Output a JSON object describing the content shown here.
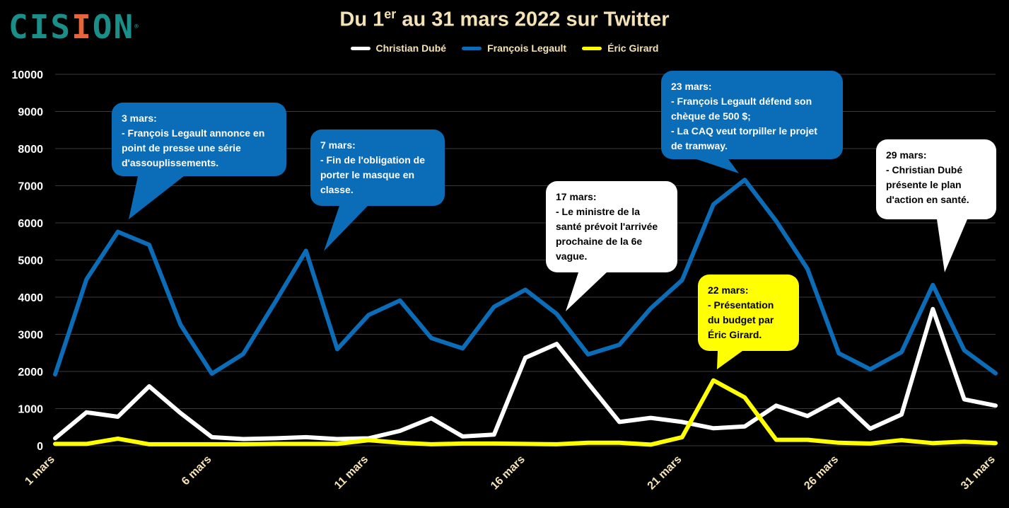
{
  "logo": {
    "text_a": "CIS",
    "text_b": "I",
    "text_c": "ON",
    "mark": "®"
  },
  "title": {
    "prefix": "Du 1",
    "sup": "er",
    "suffix": " au 31 mars 2022 sur Twitter"
  },
  "chart_data": {
    "type": "line",
    "x": [
      1,
      2,
      3,
      4,
      5,
      6,
      7,
      8,
      9,
      10,
      11,
      12,
      13,
      14,
      15,
      16,
      17,
      18,
      19,
      20,
      21,
      22,
      23,
      24,
      25,
      26,
      27,
      28,
      29,
      30,
      31
    ],
    "x_tick_labels": [
      "1 mars",
      "6 mars",
      "11 mars",
      "16 mars",
      "21 mars",
      "26 mars",
      "31 mars"
    ],
    "x_tick_positions": [
      1,
      6,
      11,
      16,
      21,
      26,
      31
    ],
    "ylim": [
      0,
      10000
    ],
    "y_ticks": [
      0,
      1000,
      2000,
      3000,
      4000,
      5000,
      6000,
      7000,
      8000,
      9000,
      10000
    ],
    "grid": true,
    "legend_position": "top",
    "series": [
      {
        "name": "Christian Dubé",
        "color": "#ffffff",
        "values": [
          200,
          900,
          780,
          1600,
          880,
          230,
          180,
          200,
          230,
          180,
          200,
          400,
          740,
          250,
          300,
          2370,
          2740,
          1680,
          640,
          750,
          640,
          470,
          520,
          1080,
          800,
          1250,
          460,
          840,
          3680,
          1250,
          1080
        ]
      },
      {
        "name": "François Legault",
        "color": "#0b6cb8",
        "values": [
          1920,
          4480,
          5760,
          5410,
          3260,
          1940,
          2470,
          3840,
          5250,
          2600,
          3520,
          3910,
          2900,
          2620,
          3740,
          4200,
          3550,
          2460,
          2720,
          3700,
          4460,
          6500,
          7160,
          6050,
          4760,
          2490,
          2060,
          2520,
          4330,
          2570,
          1950
        ]
      },
      {
        "name": "Éric Girard",
        "color": "#ffff00",
        "values": [
          50,
          50,
          190,
          40,
          40,
          40,
          40,
          50,
          50,
          50,
          150,
          80,
          40,
          60,
          60,
          50,
          40,
          80,
          80,
          30,
          230,
          1760,
          1300,
          160,
          160,
          80,
          60,
          150,
          70,
          110,
          70
        ]
      }
    ]
  },
  "annotations": [
    {
      "id": "mar3",
      "theme": "blue",
      "lines": [
        "3 mars:",
        "- François Legault annonce en",
        "point de presse une série",
        "d'assouplissements."
      ]
    },
    {
      "id": "mar7",
      "theme": "blue",
      "lines": [
        "7 mars:",
        "- Fin de l'obligation de",
        "porter le masque en",
        "classe."
      ]
    },
    {
      "id": "mar17",
      "theme": "white",
      "lines": [
        "17 mars:",
        "- Le ministre de la",
        "santé prévoit l'arrivée",
        "prochaine de la 6e",
        "vague."
      ]
    },
    {
      "id": "mar22",
      "theme": "yellow",
      "lines": [
        "22 mars:",
        "- Présentation",
        "du budget par",
        "Éric Girard."
      ]
    },
    {
      "id": "mar23",
      "theme": "blue",
      "lines": [
        "23 mars:",
        "- François Legault défend son",
        "chèque de 500 $;",
        "- La CAQ veut torpiller le projet",
        "de tramway."
      ]
    },
    {
      "id": "mar29",
      "theme": "white",
      "lines": [
        "29 mars:",
        "- Christian Dubé",
        "présente le plan",
        "d'action en santé."
      ]
    }
  ]
}
